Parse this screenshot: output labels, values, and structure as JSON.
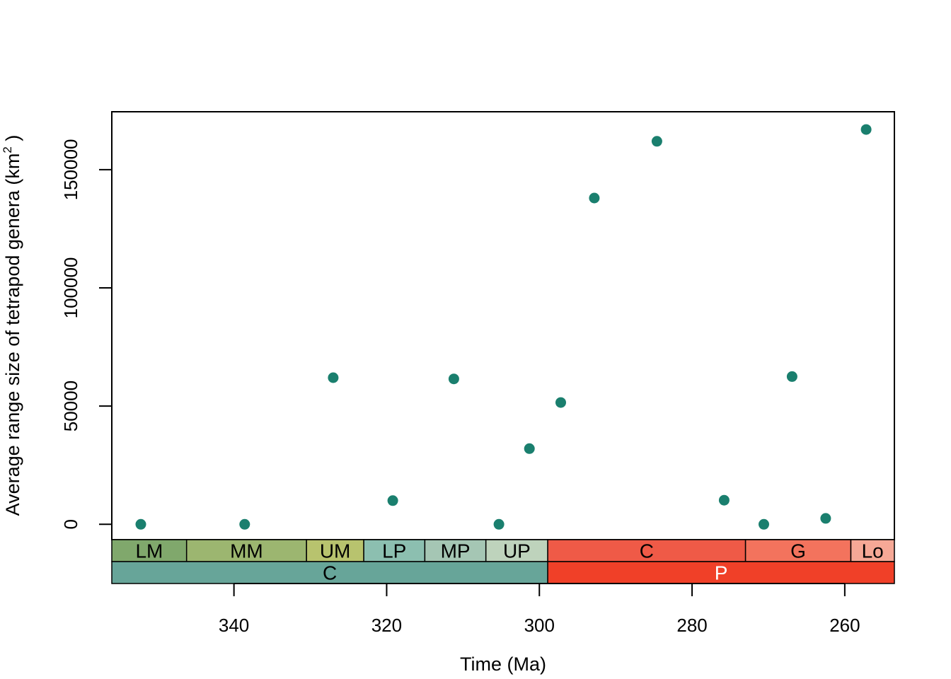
{
  "chart_data": {
    "type": "scatter",
    "xlabel": "Time (Ma)",
    "ylabel_main": "Average range size of tetrapod genera (km",
    "ylabel_sup": "2",
    "ylabel_tail": " )",
    "x_reversed": true,
    "xlim": [
      356,
      253.5
    ],
    "ylim": [
      -6500,
      174500
    ],
    "x_ticks": [
      340,
      320,
      300,
      280,
      260
    ],
    "x_tick_labels": [
      "340",
      "320",
      "300",
      "280",
      "260"
    ],
    "y_ticks": [
      0,
      50000,
      100000,
      150000
    ],
    "y_tick_labels": [
      "0",
      "50000",
      "100000",
      "150000"
    ],
    "grid": false,
    "marker_color": "#1a7f6e",
    "points": [
      {
        "x": 352.2,
        "y": 0
      },
      {
        "x": 338.6,
        "y": 0
      },
      {
        "x": 327.0,
        "y": 62000
      },
      {
        "x": 319.2,
        "y": 10000
      },
      {
        "x": 311.2,
        "y": 61500
      },
      {
        "x": 305.3,
        "y": 0
      },
      {
        "x": 301.3,
        "y": 32000
      },
      {
        "x": 297.2,
        "y": 51500
      },
      {
        "x": 292.8,
        "y": 138000
      },
      {
        "x": 284.6,
        "y": 162000
      },
      {
        "x": 275.8,
        "y": 10200
      },
      {
        "x": 270.6,
        "y": 0
      },
      {
        "x": 266.9,
        "y": 62500
      },
      {
        "x": 262.5,
        "y": 2500
      },
      {
        "x": 257.2,
        "y": 167000
      }
    ],
    "timescale": {
      "upper_row": [
        {
          "label": "LM",
          "start": 356,
          "end": 346.2,
          "color": "#80a86c",
          "text_color": "#000000"
        },
        {
          "label": "MM",
          "start": 346.2,
          "end": 330.5,
          "color": "#9cb670",
          "text_color": "#000000"
        },
        {
          "label": "UM",
          "start": 330.5,
          "end": 323.0,
          "color": "#b8c36e",
          "text_color": "#000000"
        },
        {
          "label": "LP",
          "start": 323.0,
          "end": 315.0,
          "color": "#8cbfb0",
          "text_color": "#000000"
        },
        {
          "label": "MP",
          "start": 315.0,
          "end": 307.0,
          "color": "#a5c6b4",
          "text_color": "#000000"
        },
        {
          "label": "UP",
          "start": 307.0,
          "end": 298.9,
          "color": "#bed3bc",
          "text_color": "#000000"
        },
        {
          "label": "C",
          "start": 298.9,
          "end": 273.0,
          "color": "#ef5a47",
          "text_color": "#000000"
        },
        {
          "label": "G",
          "start": 273.0,
          "end": 259.2,
          "color": "#f3735d",
          "text_color": "#000000"
        },
        {
          "label": "Lo",
          "start": 259.2,
          "end": 253.5,
          "color": "#f6a896",
          "text_color": "#000000"
        }
      ],
      "lower_row": [
        {
          "label": "C",
          "start": 356,
          "end": 298.9,
          "color": "#67a599",
          "text_color": "#000000"
        },
        {
          "label": "P",
          "start": 298.9,
          "end": 253.5,
          "color": "#f04028",
          "text_color": "#ffffff"
        }
      ]
    }
  }
}
